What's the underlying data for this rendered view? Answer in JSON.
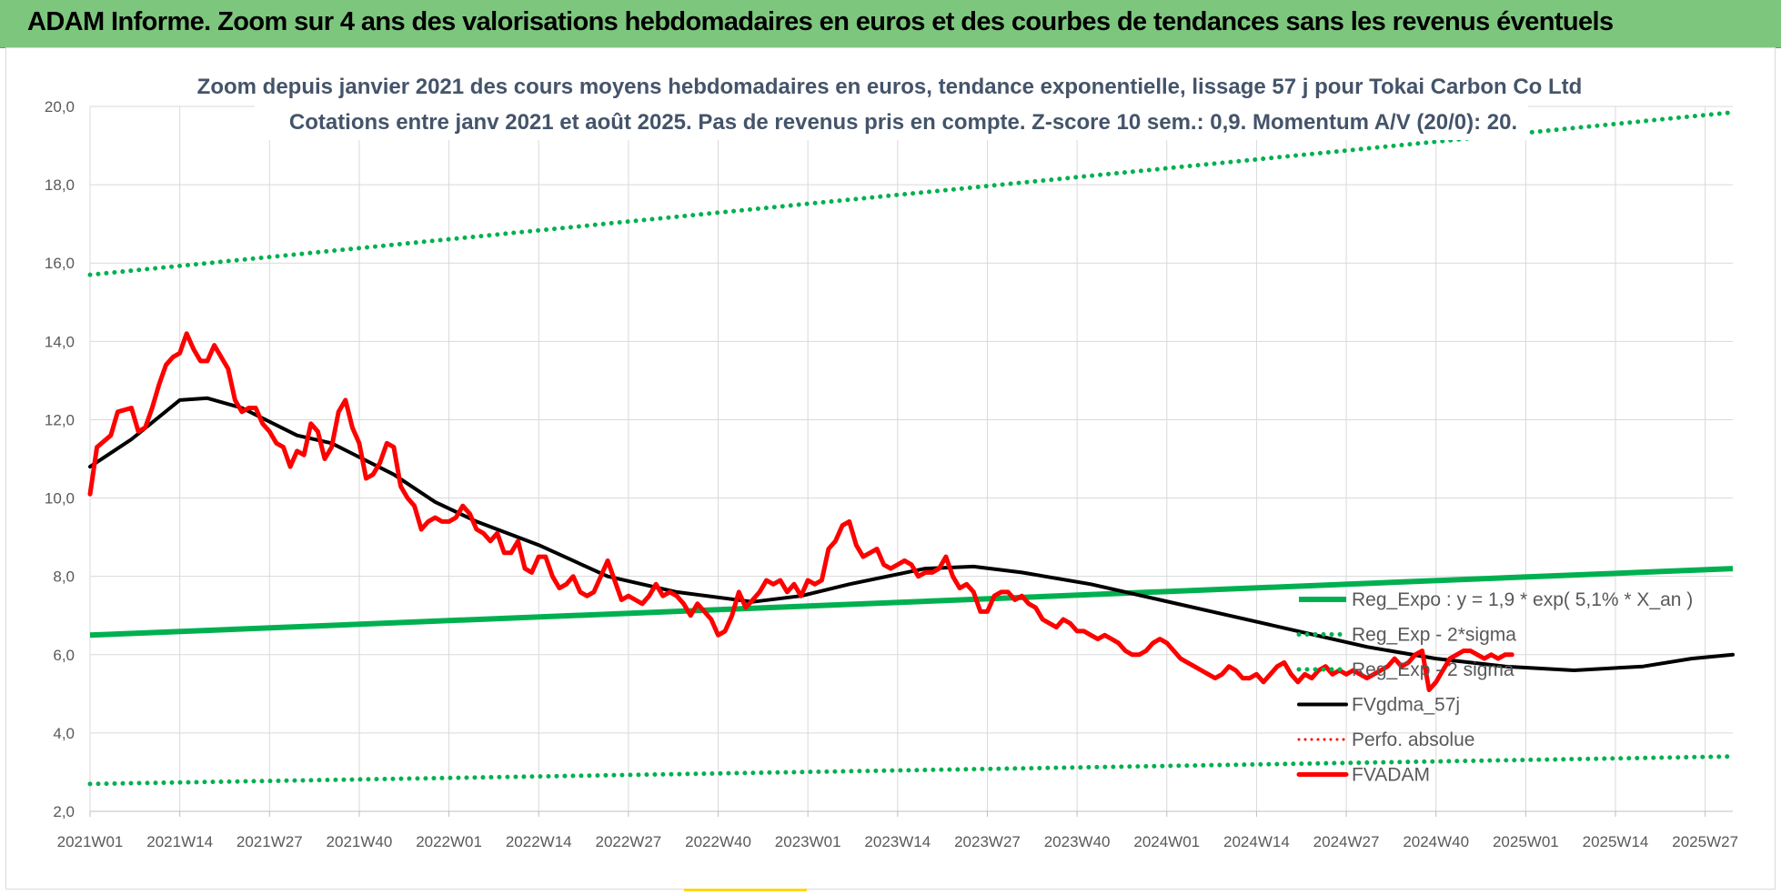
{
  "banner": {
    "title": "ADAM Informe. Zoom sur 4 ans des valorisations hebdomadaires en euros et des courbes de tendances sans les revenus éventuels"
  },
  "colors": {
    "banner": "#7dc67d",
    "trend": "#00b050",
    "fvgdma": "#000000",
    "fvadam": "#ff0000",
    "perfo": "#ff0000"
  },
  "chart_data": {
    "type": "line",
    "title": "Zoom depuis janvier 2021 des cours moyens hebdomadaires en euros, tendance exponentielle, lissage 57 j pour Tokai Carbon Co Ltd",
    "subtitle": "Cotations entre janv 2021 et août 2025.  Pas de revenus pris en compte. Z-score 10 sem.: 0,9. Momentum A/V (20/0): 20.",
    "ylim": [
      2,
      20
    ],
    "y_ticks": [
      "2,0",
      "4,0",
      "6,0",
      "8,0",
      "10,0",
      "12,0",
      "14,0",
      "16,0",
      "18,0",
      "20,0"
    ],
    "x_ticks": [
      "2021W01",
      "2021W14",
      "2021W27",
      "2021W40",
      "2022W01",
      "2022W14",
      "2022W27",
      "2022W40",
      "2023W01",
      "2023W14",
      "2023W27",
      "2023W40",
      "2024W01",
      "2024W14",
      "2024W27",
      "2024W40",
      "2025W01",
      "2025W14",
      "2025W27"
    ],
    "n_weeks": 239,
    "grid": true,
    "legend_position": "right",
    "series": [
      {
        "name": "Reg_Expo : y = 1,9 * exp( 5,1% *  X_an )",
        "style": "solid",
        "keypoints": [
          [
            0,
            6.5
          ],
          [
            238,
            8.2
          ]
        ]
      },
      {
        "name": "Reg_Exp - 2*sigma",
        "style": "dotted",
        "keypoints": [
          [
            0,
            15.7
          ],
          [
            238,
            19.85
          ]
        ]
      },
      {
        "name": "Reg_Exp - 2 sigma",
        "style": "dotted",
        "keypoints": [
          [
            0,
            2.7
          ],
          [
            238,
            3.4
          ]
        ]
      },
      {
        "name": "FVgdma_57j",
        "style": "solid",
        "keypoints": [
          [
            0,
            10.8
          ],
          [
            6,
            11.5
          ],
          [
            13,
            12.5
          ],
          [
            17,
            12.55
          ],
          [
            22,
            12.3
          ],
          [
            30,
            11.6
          ],
          [
            35,
            11.4
          ],
          [
            44,
            10.6
          ],
          [
            50,
            9.9
          ],
          [
            56,
            9.4
          ],
          [
            65,
            8.8
          ],
          [
            75,
            8.0
          ],
          [
            85,
            7.6
          ],
          [
            96,
            7.35
          ],
          [
            103,
            7.5
          ],
          [
            110,
            7.8
          ],
          [
            121,
            8.2
          ],
          [
            128,
            8.25
          ],
          [
            135,
            8.1
          ],
          [
            145,
            7.8
          ],
          [
            155,
            7.4
          ],
          [
            165,
            7.0
          ],
          [
            175,
            6.6
          ],
          [
            185,
            6.2
          ],
          [
            195,
            5.9
          ],
          [
            205,
            5.7
          ],
          [
            215,
            5.6
          ],
          [
            225,
            5.7
          ],
          [
            232,
            5.9
          ],
          [
            238,
            6.0
          ]
        ]
      },
      {
        "name": "Perfo. absolue",
        "style": "dotted",
        "keypoints": []
      },
      {
        "name": "FVADAM",
        "style": "solid",
        "keypoints": [
          [
            0,
            10.1
          ],
          [
            1,
            11.3
          ],
          [
            3,
            11.6
          ],
          [
            4,
            12.2
          ],
          [
            6,
            12.3
          ],
          [
            7,
            11.7
          ],
          [
            8,
            11.8
          ],
          [
            9,
            12.3
          ],
          [
            10,
            12.9
          ],
          [
            11,
            13.4
          ],
          [
            12,
            13.6
          ],
          [
            13,
            13.7
          ],
          [
            14,
            14.2
          ],
          [
            15,
            13.8
          ],
          [
            16,
            13.5
          ],
          [
            17,
            13.5
          ],
          [
            18,
            13.9
          ],
          [
            19,
            13.6
          ],
          [
            20,
            13.3
          ],
          [
            21,
            12.5
          ],
          [
            22,
            12.2
          ],
          [
            23,
            12.3
          ],
          [
            24,
            12.3
          ],
          [
            25,
            11.9
          ],
          [
            26,
            11.7
          ],
          [
            27,
            11.4
          ],
          [
            28,
            11.3
          ],
          [
            29,
            10.8
          ],
          [
            30,
            11.2
          ],
          [
            31,
            11.1
          ],
          [
            32,
            11.9
          ],
          [
            33,
            11.7
          ],
          [
            34,
            11.0
          ],
          [
            35,
            11.3
          ],
          [
            36,
            12.2
          ],
          [
            37,
            12.5
          ],
          [
            38,
            11.8
          ],
          [
            39,
            11.4
          ],
          [
            40,
            10.5
          ],
          [
            41,
            10.6
          ],
          [
            42,
            10.9
          ],
          [
            43,
            11.4
          ],
          [
            44,
            11.3
          ],
          [
            45,
            10.3
          ],
          [
            46,
            10.0
          ],
          [
            47,
            9.8
          ],
          [
            48,
            9.2
          ],
          [
            49,
            9.4
          ],
          [
            50,
            9.5
          ],
          [
            51,
            9.4
          ],
          [
            52,
            9.4
          ],
          [
            53,
            9.5
          ],
          [
            54,
            9.8
          ],
          [
            55,
            9.6
          ],
          [
            56,
            9.2
          ],
          [
            57,
            9.1
          ],
          [
            58,
            8.9
          ],
          [
            59,
            9.1
          ],
          [
            60,
            8.6
          ],
          [
            61,
            8.6
          ],
          [
            62,
            8.9
          ],
          [
            63,
            8.2
          ],
          [
            64,
            8.1
          ],
          [
            65,
            8.5
          ],
          [
            66,
            8.5
          ],
          [
            67,
            8.0
          ],
          [
            68,
            7.7
          ],
          [
            69,
            7.8
          ],
          [
            70,
            8.0
          ],
          [
            71,
            7.6
          ],
          [
            72,
            7.5
          ],
          [
            73,
            7.6
          ],
          [
            74,
            8.0
          ],
          [
            75,
            8.4
          ],
          [
            76,
            7.9
          ],
          [
            77,
            7.4
          ],
          [
            78,
            7.5
          ],
          [
            79,
            7.4
          ],
          [
            80,
            7.3
          ],
          [
            81,
            7.5
          ],
          [
            82,
            7.8
          ],
          [
            83,
            7.5
          ],
          [
            84,
            7.6
          ],
          [
            85,
            7.5
          ],
          [
            86,
            7.3
          ],
          [
            87,
            7.0
          ],
          [
            88,
            7.3
          ],
          [
            89,
            7.1
          ],
          [
            90,
            6.9
          ],
          [
            91,
            6.5
          ],
          [
            92,
            6.6
          ],
          [
            93,
            7.0
          ],
          [
            94,
            7.6
          ],
          [
            95,
            7.2
          ],
          [
            96,
            7.4
          ],
          [
            97,
            7.6
          ],
          [
            98,
            7.9
          ],
          [
            99,
            7.8
          ],
          [
            100,
            7.9
          ],
          [
            101,
            7.6
          ],
          [
            102,
            7.8
          ],
          [
            103,
            7.5
          ],
          [
            104,
            7.9
          ],
          [
            105,
            7.8
          ],
          [
            106,
            7.9
          ],
          [
            107,
            8.7
          ],
          [
            108,
            8.9
          ],
          [
            109,
            9.3
          ],
          [
            110,
            9.4
          ],
          [
            111,
            8.8
          ],
          [
            112,
            8.5
          ],
          [
            113,
            8.6
          ],
          [
            114,
            8.7
          ],
          [
            115,
            8.3
          ],
          [
            116,
            8.2
          ],
          [
            117,
            8.3
          ],
          [
            118,
            8.4
          ],
          [
            119,
            8.3
          ],
          [
            120,
            8.0
          ],
          [
            121,
            8.1
          ],
          [
            122,
            8.1
          ],
          [
            123,
            8.2
          ],
          [
            124,
            8.5
          ],
          [
            125,
            8.0
          ],
          [
            126,
            7.7
          ],
          [
            127,
            7.8
          ],
          [
            128,
            7.6
          ],
          [
            129,
            7.1
          ],
          [
            130,
            7.1
          ],
          [
            131,
            7.5
          ],
          [
            132,
            7.6
          ],
          [
            133,
            7.6
          ],
          [
            134,
            7.4
          ],
          [
            135,
            7.5
          ],
          [
            136,
            7.3
          ],
          [
            137,
            7.2
          ],
          [
            138,
            6.9
          ],
          [
            139,
            6.8
          ],
          [
            140,
            6.7
          ],
          [
            141,
            6.9
          ],
          [
            142,
            6.8
          ],
          [
            143,
            6.6
          ],
          [
            144,
            6.6
          ],
          [
            145,
            6.5
          ],
          [
            146,
            6.4
          ],
          [
            147,
            6.5
          ],
          [
            148,
            6.4
          ],
          [
            149,
            6.3
          ],
          [
            150,
            6.1
          ],
          [
            151,
            6.0
          ],
          [
            152,
            6.0
          ],
          [
            153,
            6.1
          ],
          [
            154,
            6.3
          ],
          [
            155,
            6.4
          ],
          [
            156,
            6.3
          ],
          [
            157,
            6.1
          ],
          [
            158,
            5.9
          ],
          [
            159,
            5.8
          ],
          [
            160,
            5.7
          ],
          [
            161,
            5.6
          ],
          [
            162,
            5.5
          ],
          [
            163,
            5.4
          ],
          [
            164,
            5.5
          ],
          [
            165,
            5.7
          ],
          [
            166,
            5.6
          ],
          [
            167,
            5.4
          ],
          [
            168,
            5.4
          ],
          [
            169,
            5.5
          ],
          [
            170,
            5.3
          ],
          [
            171,
            5.5
          ],
          [
            172,
            5.7
          ],
          [
            173,
            5.8
          ],
          [
            174,
            5.5
          ],
          [
            175,
            5.3
          ],
          [
            176,
            5.5
          ],
          [
            177,
            5.4
          ],
          [
            178,
            5.6
          ],
          [
            179,
            5.7
          ],
          [
            180,
            5.5
          ],
          [
            181,
            5.6
          ],
          [
            182,
            5.5
          ],
          [
            183,
            5.6
          ],
          [
            184,
            5.5
          ],
          [
            185,
            5.4
          ],
          [
            186,
            5.5
          ],
          [
            187,
            5.6
          ],
          [
            188,
            5.7
          ],
          [
            189,
            5.9
          ],
          [
            190,
            5.7
          ],
          [
            191,
            5.8
          ],
          [
            192,
            6.0
          ],
          [
            193,
            6.1
          ],
          [
            194,
            5.1
          ],
          [
            195,
            5.3
          ],
          [
            196,
            5.6
          ],
          [
            197,
            5.9
          ],
          [
            198,
            6.0
          ],
          [
            199,
            6.1
          ],
          [
            200,
            6.1
          ],
          [
            201,
            6.0
          ],
          [
            202,
            5.9
          ],
          [
            203,
            6.0
          ],
          [
            204,
            5.9
          ],
          [
            205,
            6.0
          ],
          [
            206,
            6.0
          ]
        ]
      }
    ]
  }
}
